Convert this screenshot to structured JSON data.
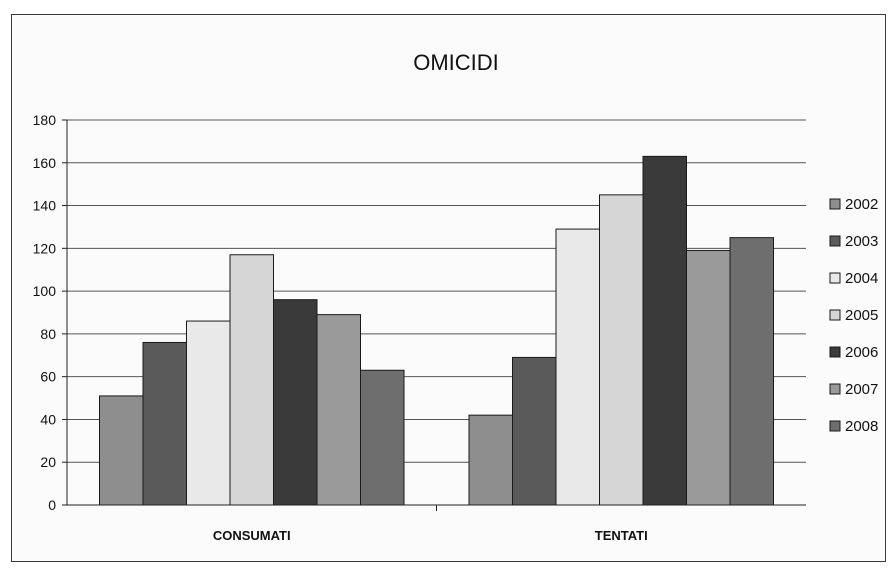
{
  "chart_data": {
    "type": "bar",
    "title": "OMICIDI",
    "xlabel": "",
    "ylabel": "",
    "categories": [
      "CONSUMATI",
      "TENTATI"
    ],
    "ylim": [
      0,
      180
    ],
    "yticks": [
      0,
      20,
      40,
      60,
      80,
      100,
      120,
      140,
      160,
      180
    ],
    "grid": true,
    "legend_position": "right",
    "series": [
      {
        "name": "2002",
        "values": [
          51,
          42
        ],
        "color": "#8e8e8e"
      },
      {
        "name": "2003",
        "values": [
          76,
          69
        ],
        "color": "#5a5a5a"
      },
      {
        "name": "2004",
        "values": [
          86,
          129
        ],
        "color": "#e9e9e9"
      },
      {
        "name": "2005",
        "values": [
          117,
          145
        ],
        "color": "#d6d6d6"
      },
      {
        "name": "2006",
        "values": [
          96,
          163
        ],
        "color": "#3a3a3a"
      },
      {
        "name": "2007",
        "values": [
          89,
          119
        ],
        "color": "#9a9a9a"
      },
      {
        "name": "2008",
        "values": [
          63,
          125
        ],
        "color": "#6e6e6e"
      }
    ]
  }
}
